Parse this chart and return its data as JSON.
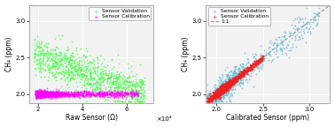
{
  "left": {
    "xlabel": "Raw Sensor (Ω)",
    "ylabel": "CH₄ (ppm)",
    "xlim": [
      16000,
      72000
    ],
    "ylim": [
      1.88,
      3.22
    ],
    "xticks": [
      20000,
      40000,
      60000
    ],
    "yticks": [
      2.0,
      2.5,
      3.0
    ],
    "xticklabels": [
      "2",
      "4",
      "6"
    ],
    "x_exp": "×10⁴",
    "legend_validation": "Sensor Validation",
    "legend_calibration": "Sensor Calibration",
    "color_validation": "#33FF33",
    "color_calibration": "#FF00FF",
    "bg_color": "#F2F2F2",
    "grid_color": "#FFFFFF"
  },
  "right": {
    "xlabel": "Calibrated Sensor (ppm)",
    "ylabel": "CH₄ (ppm)",
    "xlim": [
      1.88,
      3.22
    ],
    "ylim": [
      1.88,
      3.22
    ],
    "xticks": [
      2.0,
      2.5,
      3.0
    ],
    "yticks": [
      2.0,
      2.5,
      3.0
    ],
    "legend_validation": "Sensor Validation",
    "legend_calibration": "Sensor Calibration",
    "legend_line": "1:1",
    "color_validation": "#5BB8D4",
    "color_calibration": "#EE2020",
    "line_color": "#999999",
    "bg_color": "#F2F2F2",
    "grid_color": "#FFFFFF"
  },
  "seed": 42
}
